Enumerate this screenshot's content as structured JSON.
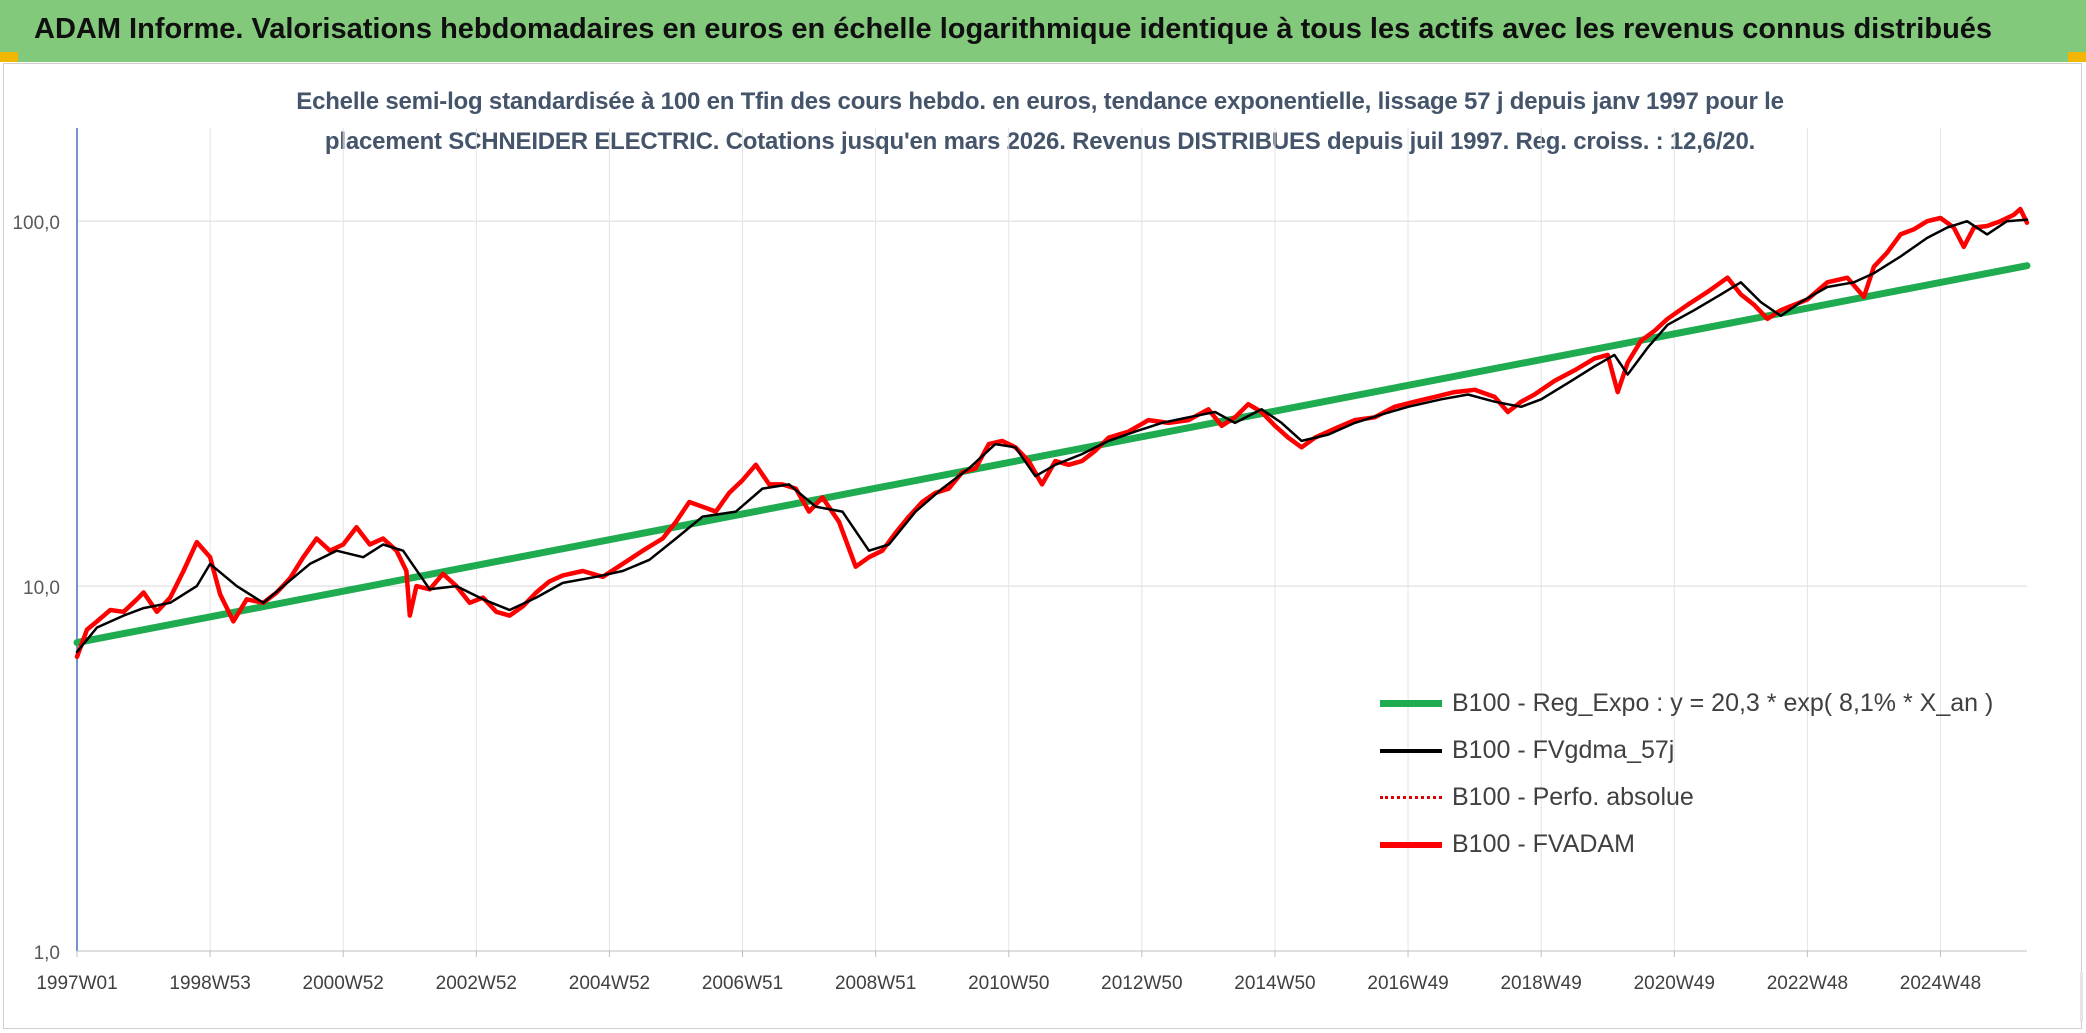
{
  "banner": {
    "title": "ADAM Informe. Valorisations hebdomadaires en euros en échelle logarithmique identique à tous les actifs avec les revenus connus distribués"
  },
  "chart_data": {
    "type": "line",
    "title_line1": "Echelle semi-log standardisée à 100 en Tfin des cours hebdo. en euros, tendance exponentielle, lissage 57 j depuis janv 1997 pour le",
    "title_line2": "placement SCHNEIDER ELECTRIC. Cotations jusqu'en mars 2026. Revenus DISTRIBUES depuis juil 1997. Reg. croiss. : 12,6/20.",
    "y_scale": "log",
    "ylim": [
      1,
      180
    ],
    "xlim": [
      1997.0,
      2026.3
    ],
    "y_ticks": [
      {
        "value": 1,
        "label": "1,0"
      },
      {
        "value": 10,
        "label": "10,0"
      },
      {
        "value": 100,
        "label": "100,0"
      }
    ],
    "x_ticks": [
      {
        "value": 1997.0,
        "label": "1997W01"
      },
      {
        "value": 1999.0,
        "label": "1998W53"
      },
      {
        "value": 2001.0,
        "label": "2000W52"
      },
      {
        "value": 2003.0,
        "label": "2002W52"
      },
      {
        "value": 2005.0,
        "label": "2004W52"
      },
      {
        "value": 2007.0,
        "label": "2006W51"
      },
      {
        "value": 2009.0,
        "label": "2008W51"
      },
      {
        "value": 2011.0,
        "label": "2010W50"
      },
      {
        "value": 2013.0,
        "label": "2012W50"
      },
      {
        "value": 2015.0,
        "label": "2014W50"
      },
      {
        "value": 2017.0,
        "label": "2016W49"
      },
      {
        "value": 2019.0,
        "label": "2018W49"
      },
      {
        "value": 2021.0,
        "label": "2020W49"
      },
      {
        "value": 2023.0,
        "label": "2022W48"
      },
      {
        "value": 2025.0,
        "label": "2024W48"
      }
    ],
    "grid": true,
    "legend_position": "bottom-right",
    "series": [
      {
        "name": "B100 - Reg_Expo : y = 20,3 * exp( 8,1% *  X_an )",
        "color": "#1fab4f",
        "x": [
          1997.0,
          2026.3
        ],
        "y": [
          7.0,
          75.5
        ]
      },
      {
        "name": "B100 - FVgdma_57j",
        "color": "#000000",
        "x": [
          1997.0,
          1997.3,
          1997.7,
          1998.0,
          1998.4,
          1998.8,
          1999.0,
          1999.4,
          1999.8,
          2000.1,
          2000.5,
          2000.9,
          2001.3,
          2001.6,
          2001.9,
          2002.3,
          2002.7,
          2003.1,
          2003.5,
          2003.9,
          2004.3,
          2004.8,
          2005.2,
          2005.6,
          2006.0,
          2006.4,
          2006.9,
          2007.3,
          2007.7,
          2008.1,
          2008.5,
          2008.9,
          2009.2,
          2009.6,
          2010.0,
          2010.4,
          2010.8,
          2011.1,
          2011.4,
          2011.7,
          2012.1,
          2012.5,
          2012.9,
          2013.3,
          2013.7,
          2014.1,
          2014.4,
          2014.8,
          2015.1,
          2015.4,
          2015.8,
          2016.2,
          2016.6,
          2017.0,
          2017.5,
          2017.9,
          2018.3,
          2018.7,
          2019.0,
          2019.4,
          2019.8,
          2020.1,
          2020.3,
          2020.6,
          2020.9,
          2021.3,
          2021.7,
          2022.0,
          2022.3,
          2022.6,
          2022.9,
          2023.3,
          2023.7,
          2024.0,
          2024.4,
          2024.8,
          2025.1,
          2025.4,
          2025.7,
          2026.0,
          2026.3
        ],
        "y": [
          6.6,
          7.7,
          8.3,
          8.7,
          9.0,
          10.0,
          11.5,
          10.0,
          9.0,
          10.0,
          11.5,
          12.5,
          12.0,
          13.0,
          12.5,
          9.8,
          10.0,
          9.2,
          8.6,
          9.3,
          10.2,
          10.6,
          11.0,
          11.8,
          13.5,
          15.5,
          16.0,
          18.5,
          19.0,
          16.5,
          16.0,
          12.5,
          13.0,
          16.0,
          18.5,
          21.0,
          24.5,
          24.0,
          20.0,
          21.5,
          23.0,
          25.0,
          26.5,
          28.0,
          29.0,
          30.0,
          28.0,
          30.5,
          28.0,
          25.0,
          26.0,
          28.0,
          29.5,
          31.0,
          32.5,
          33.5,
          32.0,
          31.0,
          32.5,
          36.0,
          40.0,
          43.0,
          38.0,
          45.0,
          52.0,
          57.0,
          63.0,
          68.0,
          60.0,
          55.0,
          60.0,
          66.0,
          68.0,
          72.0,
          80.0,
          90.0,
          96.0,
          100.0,
          92.0,
          100.0,
          101.0
        ]
      },
      {
        "name": "B100 - Perfo. absolue",
        "color": "#e00000",
        "x": [
          1997.0,
          2026.3
        ],
        "y": [
          6.6,
          101.0
        ]
      },
      {
        "name": "B100 - FVADAM",
        "color": "#ff0000",
        "x": [
          1997.0,
          1997.15,
          1997.3,
          1997.5,
          1997.7,
          1997.9,
          1998.0,
          1998.2,
          1998.4,
          1998.6,
          1998.8,
          1999.0,
          1999.15,
          1999.35,
          1999.55,
          1999.8,
          2000.0,
          2000.2,
          2000.4,
          2000.6,
          2000.8,
          2001.0,
          2001.2,
          2001.4,
          2001.6,
          2001.8,
          2001.95,
          2002.0,
          2002.1,
          2002.3,
          2002.5,
          2002.7,
          2002.9,
          2003.1,
          2003.3,
          2003.5,
          2003.7,
          2003.9,
          2004.1,
          2004.3,
          2004.6,
          2004.9,
          2005.2,
          2005.5,
          2005.8,
          2006.0,
          2006.2,
          2006.4,
          2006.6,
          2006.8,
          2007.0,
          2007.2,
          2007.4,
          2007.6,
          2007.8,
          2008.0,
          2008.2,
          2008.45,
          2008.7,
          2008.9,
          2009.1,
          2009.3,
          2009.5,
          2009.7,
          2009.9,
          2010.1,
          2010.3,
          2010.5,
          2010.7,
          2010.9,
          2011.1,
          2011.3,
          2011.5,
          2011.7,
          2011.9,
          2012.1,
          2012.3,
          2012.5,
          2012.8,
          2013.1,
          2013.4,
          2013.7,
          2014.0,
          2014.2,
          2014.4,
          2014.6,
          2014.8,
          2015.0,
          2015.2,
          2015.4,
          2015.6,
          2015.9,
          2016.2,
          2016.5,
          2016.8,
          2017.1,
          2017.4,
          2017.7,
          2018.0,
          2018.3,
          2018.5,
          2018.7,
          2018.9,
          2019.2,
          2019.5,
          2019.8,
          2020.0,
          2020.15,
          2020.3,
          2020.5,
          2020.7,
          2020.9,
          2021.2,
          2021.5,
          2021.8,
          2022.0,
          2022.2,
          2022.4,
          2022.6,
          2022.8,
          2023.0,
          2023.3,
          2023.6,
          2023.85,
          2024.0,
          2024.2,
          2024.4,
          2024.6,
          2024.8,
          2025.0,
          2025.2,
          2025.35,
          2025.5,
          2025.7,
          2025.9,
          2026.1,
          2026.2,
          2026.3
        ],
        "y": [
          6.4,
          7.6,
          8.0,
          8.6,
          8.5,
          9.2,
          9.6,
          8.5,
          9.3,
          11.0,
          13.2,
          12.0,
          9.5,
          8.0,
          9.2,
          9.0,
          9.6,
          10.5,
          12.0,
          13.5,
          12.5,
          13.0,
          14.5,
          13.0,
          13.5,
          12.5,
          11.0,
          8.3,
          10.0,
          9.8,
          10.8,
          10.0,
          9.0,
          9.3,
          8.5,
          8.3,
          8.8,
          9.6,
          10.3,
          10.7,
          11.0,
          10.6,
          11.5,
          12.5,
          13.5,
          15.0,
          17.0,
          16.5,
          16.0,
          18.0,
          19.5,
          21.5,
          19.0,
          19.0,
          18.5,
          16.0,
          17.5,
          15.0,
          11.3,
          12.0,
          12.5,
          14.0,
          15.5,
          17.0,
          18.0,
          18.5,
          20.5,
          21.0,
          24.5,
          25.0,
          24.0,
          22.0,
          19.0,
          22.0,
          21.5,
          22.0,
          23.5,
          25.5,
          26.5,
          28.5,
          28.0,
          28.5,
          30.5,
          27.5,
          29.0,
          31.5,
          30.0,
          27.5,
          25.5,
          24.0,
          25.5,
          27.0,
          28.5,
          29.0,
          31.0,
          32.0,
          33.0,
          34.0,
          34.5,
          33.0,
          30.0,
          32.0,
          33.5,
          36.5,
          39.0,
          42.0,
          43.0,
          34.0,
          41.0,
          47.0,
          50.0,
          54.0,
          59.0,
          64.0,
          70.0,
          63.0,
          59.0,
          54.0,
          57.0,
          59.0,
          61.0,
          68.0,
          70.0,
          62.0,
          75.0,
          82.0,
          92.0,
          95.0,
          100.0,
          102.0,
          96.0,
          85.0,
          96.0,
          97.0,
          100.0,
          104.0,
          108.0,
          99.0
        ]
      }
    ]
  }
}
